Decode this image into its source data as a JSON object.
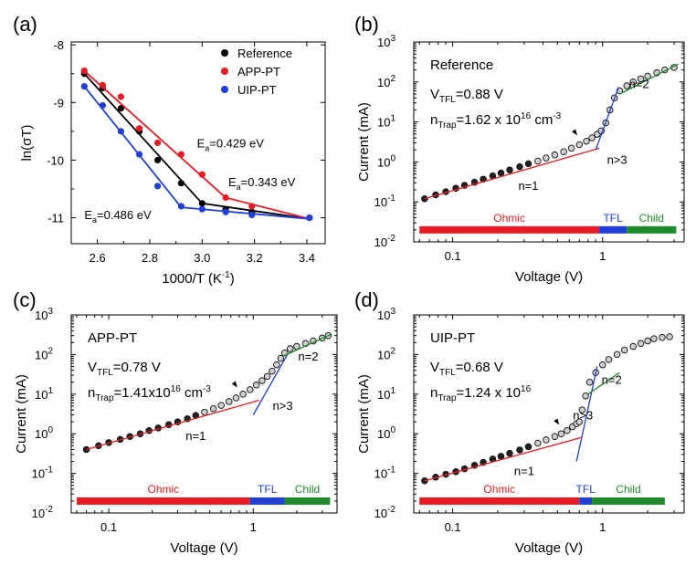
{
  "chart_data": [
    {
      "panel": "(a)",
      "type": "line",
      "xlabel": "1000/T (K",
      "xlabel_sup": "-1",
      "xlabel_end": ")",
      "ylabel": "ln(σT)",
      "xlim": [
        2.5,
        3.47
      ],
      "ylim": [
        -11.45,
        -7.95
      ],
      "xticks": [
        2.6,
        2.8,
        3.0,
        3.2,
        3.4
      ],
      "xtick_labels": [
        "2.6",
        "2.8",
        "3.0",
        "3.2",
        "3.4"
      ],
      "yticks": [
        -11,
        -10,
        -9,
        -8
      ],
      "ytick_labels": [
        "-11",
        "-10",
        "-9",
        "-8"
      ],
      "legend_position": "top-right",
      "series": [
        {
          "name": "Reference",
          "color": "#000000",
          "x": [
            2.55,
            2.62,
            2.69,
            2.76,
            2.83,
            2.92,
            3.0,
            3.09,
            3.19,
            3.41
          ],
          "y": [
            -8.5,
            -8.75,
            -9.1,
            -9.5,
            -10.0,
            -10.4,
            -10.75,
            -10.85,
            -10.9,
            -11.0
          ],
          "fit": {
            "x": [
              2.55,
              3.0,
              3.41
            ],
            "y": [
              -8.5,
              -10.75,
              -11.02
            ]
          }
        },
        {
          "name": "APP-PT",
          "color": "#e51c23",
          "x": [
            2.55,
            2.62,
            2.69,
            2.76,
            2.83,
            2.92,
            3.0,
            3.09,
            3.19,
            3.41
          ],
          "y": [
            -8.45,
            -8.7,
            -8.9,
            -9.45,
            -9.7,
            -9.9,
            -10.25,
            -10.65,
            -10.8,
            -11.0
          ],
          "fit": {
            "x": [
              2.55,
              3.09,
              3.41
            ],
            "y": [
              -8.45,
              -10.65,
              -11.02
            ]
          }
        },
        {
          "name": "UIP-PT",
          "color": "#1f3fd6",
          "x": [
            2.55,
            2.62,
            2.69,
            2.76,
            2.83,
            2.92,
            3.0,
            3.09,
            3.19,
            3.41
          ],
          "y": [
            -8.72,
            -9.05,
            -9.5,
            -9.9,
            -10.45,
            -10.8,
            -10.85,
            -10.9,
            -10.95,
            -11.0
          ],
          "fit": {
            "x": [
              2.55,
              2.92,
              3.41
            ],
            "y": [
              -8.72,
              -10.82,
              -11.02
            ]
          }
        }
      ],
      "annotations": [
        {
          "text": "E",
          "sub": "a",
          "rest": "=0.429 eV",
          "color": "#000000",
          "x": 2.98,
          "y": -9.78
        },
        {
          "text": "E",
          "sub": "a",
          "rest": "=0.343 eV",
          "color": "#e51c23",
          "x": 3.1,
          "y": -10.45
        },
        {
          "text": "E",
          "sub": "a",
          "rest": "=0.486 eV",
          "color": "#1f3fd6",
          "x": 2.55,
          "y": -11.02
        }
      ]
    },
    {
      "panel": "(b)",
      "type": "scatter",
      "title": "Reference",
      "xlabel": "Voltage (V)",
      "ylabel": "Current (mA)",
      "xscale": "log",
      "yscale": "log",
      "xlim": [
        0.055,
        3.5
      ],
      "ylim": [
        0.01,
        1000
      ],
      "xticks": [
        0.1,
        1
      ],
      "xtick_labels": [
        "0.1",
        "1"
      ],
      "yticks": [
        0.01,
        0.1,
        1,
        10,
        100,
        1000
      ],
      "ytick_labels": [
        "10",
        "10",
        "10",
        "10",
        "10",
        "10"
      ],
      "ytick_exponents": [
        "-2",
        "-1",
        "0",
        "1",
        "2",
        "3"
      ],
      "params": [
        {
          "main": "V",
          "sub": "TFL",
          "rest": "=0.88 V",
          "sup": ""
        },
        {
          "main": "n",
          "sub": "Trap",
          "rest": "=1.62 x 10",
          "sup": "16",
          "rest2": " cm",
          "sup2": "-3"
        }
      ],
      "regimes": [
        {
          "label": "Ohmic",
          "x_start": 0.06,
          "x_end": 0.95,
          "color": "#e51c23"
        },
        {
          "label": "TFL",
          "x_start": 0.95,
          "x_end": 1.45,
          "color": "#1f3fd6"
        },
        {
          "label": "Child",
          "x_start": 1.45,
          "x_end": 3.1,
          "color": "#1e8a2a"
        }
      ],
      "slope_labels": [
        {
          "text": "n=1",
          "x": 0.32,
          "y": 0.2
        },
        {
          "text": "n>3",
          "x": 1.25,
          "y": 0.9
        },
        {
          "text": "n=2",
          "x": 1.75,
          "y": 70
        }
      ],
      "data": {
        "x": [
          0.065,
          0.077,
          0.09,
          0.105,
          0.12,
          0.14,
          0.16,
          0.185,
          0.21,
          0.24,
          0.28,
          0.32,
          0.37,
          0.42,
          0.48,
          0.55,
          0.62,
          0.7,
          0.78,
          0.85,
          0.92,
          0.98,
          1.05,
          1.12,
          1.2,
          1.3,
          1.45,
          1.6,
          1.8,
          2.0,
          2.3,
          2.6,
          3.0
        ],
        "y": [
          0.12,
          0.15,
          0.18,
          0.22,
          0.26,
          0.31,
          0.37,
          0.45,
          0.53,
          0.63,
          0.76,
          0.9,
          1.05,
          1.25,
          1.5,
          1.8,
          2.2,
          2.7,
          3.3,
          4.0,
          4.9,
          6.0,
          9.5,
          20,
          40,
          60,
          80,
          100,
          120,
          140,
          170,
          200,
          230
        ]
      },
      "fits": [
        {
          "color": "#e51c23",
          "x": [
            0.065,
            0.95
          ],
          "y": [
            0.12,
            2.2
          ]
        },
        {
          "color": "#1f3fd6",
          "x": [
            0.9,
            1.28
          ],
          "y": [
            2.0,
            75
          ]
        },
        {
          "color": "#1e8a2a",
          "x": [
            1.3,
            3.2
          ],
          "y": [
            50,
            280
          ]
        }
      ]
    },
    {
      "panel": "(c)",
      "type": "scatter",
      "title": "APP-PT",
      "xlabel": "Voltage (V)",
      "ylabel": "Current (mA)",
      "xscale": "log",
      "yscale": "log",
      "xlim": [
        0.055,
        3.8
      ],
      "ylim": [
        0.01,
        1000
      ],
      "xticks": [
        0.1,
        1
      ],
      "xtick_labels": [
        "0.1",
        "1"
      ],
      "yticks": [
        0.01,
        0.1,
        1,
        10,
        100,
        1000
      ],
      "ytick_labels": [
        "10",
        "10",
        "10",
        "10",
        "10",
        "10"
      ],
      "ytick_exponents": [
        "-2",
        "-1",
        "0",
        "1",
        "2",
        "3"
      ],
      "params": [
        {
          "main": "V",
          "sub": "TFL",
          "rest": "=0.78 V",
          "sup": ""
        },
        {
          "main": "n",
          "sub": "Trap",
          "rest": "=1.41x10",
          "sup": "16",
          "rest2": " cm",
          "sup2": "-3"
        }
      ],
      "regimes": [
        {
          "label": "Ohmic",
          "x_start": 0.06,
          "x_end": 0.95,
          "color": "#e51c23"
        },
        {
          "label": "TFL",
          "x_start": 0.95,
          "x_end": 1.65,
          "color": "#1f3fd6"
        },
        {
          "label": "Child",
          "x_start": 1.65,
          "x_end": 3.4,
          "color": "#1e8a2a"
        }
      ],
      "slope_labels": [
        {
          "text": "n=1",
          "x": 0.4,
          "y": 0.7
        },
        {
          "text": "n>3",
          "x": 1.6,
          "y": 4
        },
        {
          "text": "n=2",
          "x": 2.4,
          "y": 70
        }
      ],
      "data": {
        "x": [
          0.07,
          0.085,
          0.1,
          0.12,
          0.14,
          0.165,
          0.19,
          0.22,
          0.26,
          0.3,
          0.35,
          0.4,
          0.46,
          0.53,
          0.6,
          0.68,
          0.76,
          0.85,
          0.95,
          1.05,
          1.15,
          1.25,
          1.35,
          1.45,
          1.55,
          1.65,
          1.8,
          2.0,
          2.3,
          2.6,
          3.0,
          3.3
        ],
        "y": [
          0.4,
          0.5,
          0.6,
          0.72,
          0.85,
          1.0,
          1.2,
          1.4,
          1.7,
          2.0,
          2.4,
          2.9,
          3.5,
          4.3,
          5.2,
          6.5,
          8.0,
          10,
          13,
          17,
          22,
          28,
          38,
          55,
          80,
          110,
          140,
          160,
          190,
          220,
          260,
          300
        ]
      },
      "fits": [
        {
          "color": "#e51c23",
          "x": [
            0.07,
            1.1
          ],
          "y": [
            0.4,
            7.0
          ]
        },
        {
          "color": "#1f3fd6",
          "x": [
            1.0,
            1.75
          ],
          "y": [
            3.0,
            110
          ]
        },
        {
          "color": "#1e8a2a",
          "x": [
            1.6,
            3.5
          ],
          "y": [
            90,
            330
          ]
        }
      ]
    },
    {
      "panel": "(d)",
      "type": "scatter",
      "title": "UIP-PT",
      "xlabel": "Voltage (V)",
      "ylabel": "Current (mA)",
      "xscale": "log",
      "yscale": "log",
      "xlim": [
        0.055,
        3.5
      ],
      "ylim": [
        0.01,
        1000
      ],
      "xticks": [
        0.1,
        1
      ],
      "xtick_labels": [
        "0.1",
        "1"
      ],
      "yticks": [
        0.01,
        0.1,
        1,
        10,
        100,
        1000
      ],
      "ytick_labels": [
        "10",
        "10",
        "10",
        "10",
        "10",
        "10"
      ],
      "ytick_exponents": [
        "-2",
        "-1",
        "0",
        "1",
        "2",
        "3"
      ],
      "params": [
        {
          "main": "V",
          "sub": "TFL",
          "rest": "=0.68 V",
          "sup": ""
        },
        {
          "main": "n",
          "sub": "Trap",
          "rest": "=1.24 x 10",
          "sup": "16",
          "rest2": "",
          "sup2": ""
        }
      ],
      "regimes": [
        {
          "label": "Ohmic",
          "x_start": 0.06,
          "x_end": 0.7,
          "color": "#e51c23"
        },
        {
          "label": "TFL",
          "x_start": 0.7,
          "x_end": 0.85,
          "color": "#1f3fd6"
        },
        {
          "label": "Child",
          "x_start": 0.85,
          "x_end": 2.6,
          "color": "#1e8a2a"
        }
      ],
      "slope_labels": [
        {
          "text": "n=1",
          "x": 0.3,
          "y": 0.09
        },
        {
          "text": "n>3",
          "x": 0.74,
          "y": 2.3
        },
        {
          "text": "n=2",
          "x": 1.15,
          "y": 18
        }
      ],
      "data": {
        "x": [
          0.065,
          0.077,
          0.09,
          0.105,
          0.12,
          0.14,
          0.16,
          0.185,
          0.21,
          0.24,
          0.28,
          0.32,
          0.37,
          0.42,
          0.48,
          0.53,
          0.58,
          0.63,
          0.67,
          0.7,
          0.73,
          0.77,
          0.82,
          0.9,
          1.0,
          1.1,
          1.25,
          1.4,
          1.6,
          1.8,
          2.0,
          2.2,
          2.5,
          2.8
        ],
        "y": [
          0.065,
          0.08,
          0.095,
          0.11,
          0.13,
          0.16,
          0.19,
          0.23,
          0.27,
          0.32,
          0.39,
          0.47,
          0.58,
          0.7,
          0.85,
          1.0,
          1.2,
          1.5,
          1.8,
          2.0,
          4.0,
          9,
          20,
          35,
          55,
          75,
          100,
          130,
          160,
          190,
          220,
          250,
          270,
          280
        ]
      },
      "fits": [
        {
          "color": "#e51c23",
          "x": [
            0.065,
            0.72
          ],
          "y": [
            0.065,
            0.8
          ]
        },
        {
          "color": "#1f3fd6",
          "x": [
            0.67,
            0.92
          ],
          "y": [
            0.2,
            50
          ]
        },
        {
          "color": "#1e8a2a",
          "x": [
            0.8,
            1.3
          ],
          "y": [
            10,
            35
          ]
        }
      ]
    }
  ]
}
